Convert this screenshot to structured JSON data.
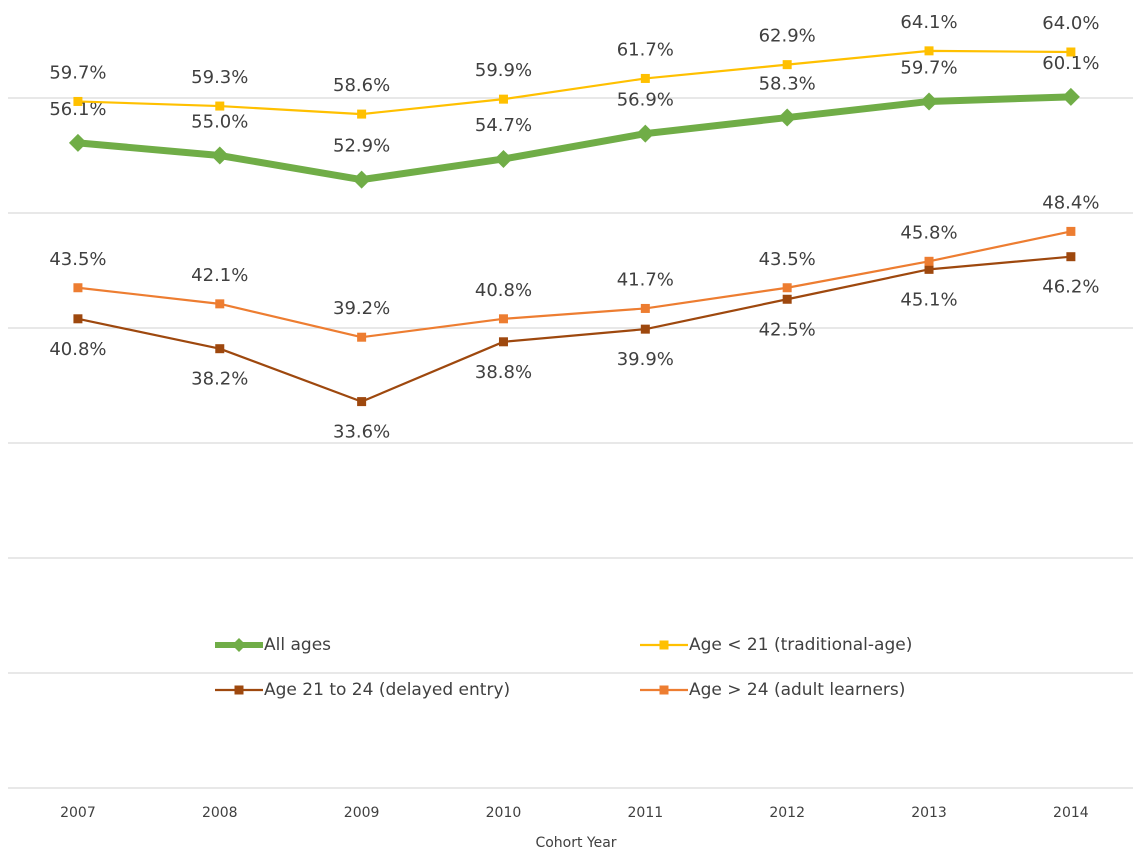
{
  "chart_data": {
    "type": "line",
    "x_label": "Cohort Year",
    "categories": [
      "2007",
      "2008",
      "2009",
      "2010",
      "2011",
      "2012",
      "2013",
      "2014"
    ],
    "ylim": [
      0,
      68
    ],
    "yticks": [
      0,
      10,
      20,
      30,
      40,
      50,
      60
    ],
    "grid": true,
    "legend": "inside-bottom",
    "series": [
      {
        "name": "All ages",
        "color": "#70ad47",
        "marker": "diamond",
        "label_position": "above",
        "values": [
          56.1,
          55.0,
          52.9,
          54.7,
          56.9,
          58.3,
          59.7,
          60.1
        ],
        "value_labels": [
          "56.1%",
          "55.0%",
          "52.9%",
          "54.7%",
          "56.9%",
          "58.3%",
          "59.7%",
          "60.1%"
        ]
      },
      {
        "name": "Age < 21 (traditional-age)",
        "color": "#ffc000",
        "marker": "square",
        "label_position": "above",
        "values": [
          59.7,
          59.3,
          58.6,
          59.9,
          61.7,
          62.9,
          64.1,
          64.0
        ],
        "value_labels": [
          "59.7%",
          "59.3%",
          "58.6%",
          "59.9%",
          "61.7%",
          "62.9%",
          "64.1%",
          "64.0%"
        ]
      },
      {
        "name": "Age 21 to 24 (delayed entry)",
        "color": "#9e480e",
        "marker": "square",
        "label_position": "below",
        "values": [
          40.8,
          38.2,
          33.6,
          38.8,
          39.9,
          42.5,
          45.1,
          46.2
        ],
        "value_labels": [
          "40.8%",
          "38.2%",
          "33.6%",
          "38.8%",
          "39.9%",
          "42.5%",
          "45.1%",
          "46.2%"
        ]
      },
      {
        "name": "Age > 24 (adult learners)",
        "color": "#ed7d31",
        "marker": "square",
        "label_position": "above",
        "values": [
          43.5,
          42.1,
          39.2,
          40.8,
          41.7,
          43.5,
          45.8,
          48.4
        ],
        "value_labels": [
          "43.5%",
          "42.1%",
          "39.2%",
          "40.8%",
          "41.7%",
          "43.5%",
          "45.8%",
          "48.4%"
        ]
      }
    ]
  }
}
